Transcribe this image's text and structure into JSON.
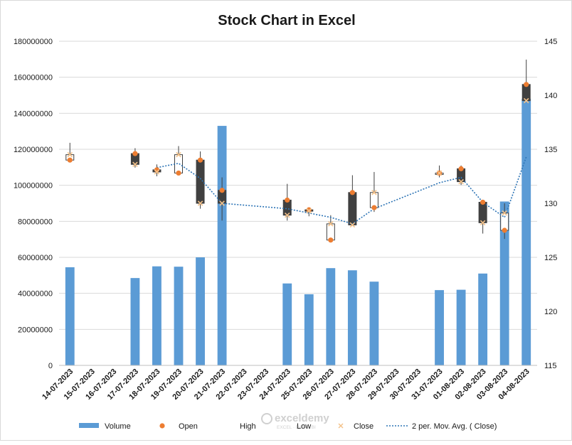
{
  "chart_data": {
    "type": "stock-volume-open-high-low-close",
    "title": "Stock Chart in Excel",
    "categories": [
      "14-07-2023",
      "15-07-2023",
      "16-07-2023",
      "17-07-2023",
      "18-07-2023",
      "19-07-2023",
      "20-07-2023",
      "21-07-2023",
      "22-07-2023",
      "23-07-2023",
      "24-07-2023",
      "25-07-2023",
      "26-07-2023",
      "27-07-2023",
      "28-07-2023",
      "29-07-2023",
      "30-07-2023",
      "31-07-2023",
      "01-08-2023",
      "02-08-2023",
      "03-08-2023",
      "04-08-2023"
    ],
    "primary_y": {
      "min": 0,
      "max": 180000000,
      "step": 20000000
    },
    "secondary_y": {
      "min": 115,
      "max": 145,
      "step": 5
    },
    "volume": [
      54500000,
      null,
      null,
      48500000,
      55000000,
      54800000,
      60000000,
      133000000,
      null,
      null,
      45500000,
      39500000,
      54000000,
      52800000,
      46500000,
      null,
      null,
      41800000,
      42000000,
      51000000,
      91000000,
      148000000
    ],
    "open": [
      134.0,
      null,
      null,
      134.6,
      133.1,
      132.8,
      134.0,
      131.2,
      null,
      null,
      130.3,
      129.4,
      126.6,
      131.0,
      129.6,
      null,
      null,
      132.8,
      133.2,
      130.1,
      127.5,
      141.0
    ],
    "high": [
      135.6,
      null,
      null,
      135.1,
      133.6,
      135.3,
      134.8,
      132.4,
      null,
      null,
      131.8,
      129.6,
      128.9,
      132.6,
      132.9,
      null,
      null,
      133.5,
      133.5,
      130.3,
      130.0,
      143.3
    ],
    "low": [
      134.2,
      null,
      null,
      133.3,
      132.5,
      132.7,
      129.5,
      128.4,
      null,
      null,
      128.4,
      128.8,
      126.4,
      128.0,
      129.2,
      null,
      null,
      132.4,
      131.7,
      127.2,
      126.7,
      139.5
    ],
    "close": [
      134.5,
      null,
      null,
      133.6,
      132.9,
      134.5,
      130.0,
      130.0,
      null,
      null,
      128.9,
      129.3,
      128.1,
      128.0,
      131.0,
      null,
      null,
      132.8,
      132.0,
      128.2,
      129.1,
      139.5
    ],
    "moving_average_2": [
      null,
      null,
      null,
      null,
      133.3,
      133.7,
      132.3,
      130.0,
      null,
      null,
      129.5,
      129.1,
      128.7,
      128.1,
      129.5,
      null,
      null,
      131.9,
      132.4,
      130.1,
      128.7,
      134.3
    ],
    "legend": [
      "Volume",
      "Open",
      "High",
      "Low",
      "Close",
      "2 per. Mov. Avg. ( Close)"
    ],
    "legend_position": "bottom",
    "colors": {
      "volume": "#5b9bd5",
      "open": "#ed7d31",
      "close": "#f4c28a",
      "moving_average": "#2e75b6",
      "down_box": "#404040",
      "up_box": "#ffffff",
      "wick": "#404040",
      "grid": "#d9d9d9"
    }
  },
  "watermark": {
    "brand": "exceldemy",
    "tagline": "EXCEL · DATA · BI"
  }
}
